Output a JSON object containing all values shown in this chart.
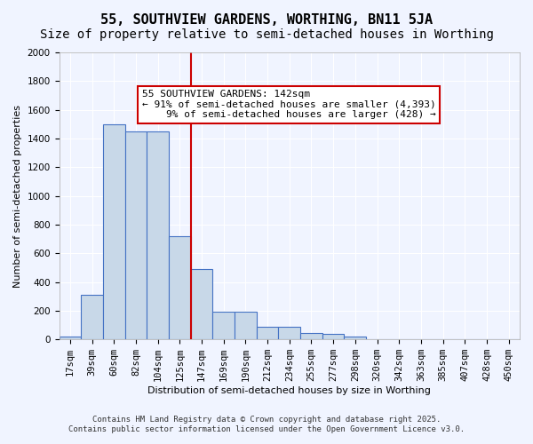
{
  "title": "55, SOUTHVIEW GARDENS, WORTHING, BN11 5JA",
  "subtitle": "Size of property relative to semi-detached houses in Worthing",
  "xlabel": "Distribution of semi-detached houses by size in Worthing",
  "ylabel": "Number of semi-detached properties",
  "categories": [
    "17sqm",
    "39sqm",
    "60sqm",
    "82sqm",
    "104sqm",
    "125sqm",
    "147sqm",
    "169sqm",
    "190sqm",
    "212sqm",
    "234sqm",
    "255sqm",
    "277sqm",
    "298sqm",
    "320sqm",
    "342sqm",
    "363sqm",
    "385sqm",
    "407sqm",
    "428sqm",
    "450sqm"
  ],
  "values": [
    20,
    310,
    1500,
    1450,
    1450,
    720,
    490,
    195,
    195,
    90,
    90,
    45,
    40,
    20,
    0,
    0,
    0,
    0,
    0,
    0,
    0
  ],
  "bar_color": "#c8d8e8",
  "bar_edge_color": "#4472c4",
  "vline_x_index": 6,
  "vline_color": "#cc0000",
  "annotation_text": "55 SOUTHVIEW GARDENS: 142sqm\n← 91% of semi-detached houses are smaller (4,393)\n    9% of semi-detached houses are larger (428) →",
  "annotation_box_color": "#ffffff",
  "annotation_box_edge": "#cc0000",
  "ylim": [
    0,
    2000
  ],
  "yticks": [
    0,
    200,
    400,
    600,
    800,
    1000,
    1200,
    1400,
    1600,
    1800,
    2000
  ],
  "background_color": "#f0f4ff",
  "grid_color": "#ffffff",
  "footer_line1": "Contains HM Land Registry data © Crown copyright and database right 2025.",
  "footer_line2": "Contains public sector information licensed under the Open Government Licence v3.0.",
  "title_fontsize": 11,
  "subtitle_fontsize": 10,
  "label_fontsize": 8,
  "tick_fontsize": 7.5,
  "annotation_fontsize": 8
}
